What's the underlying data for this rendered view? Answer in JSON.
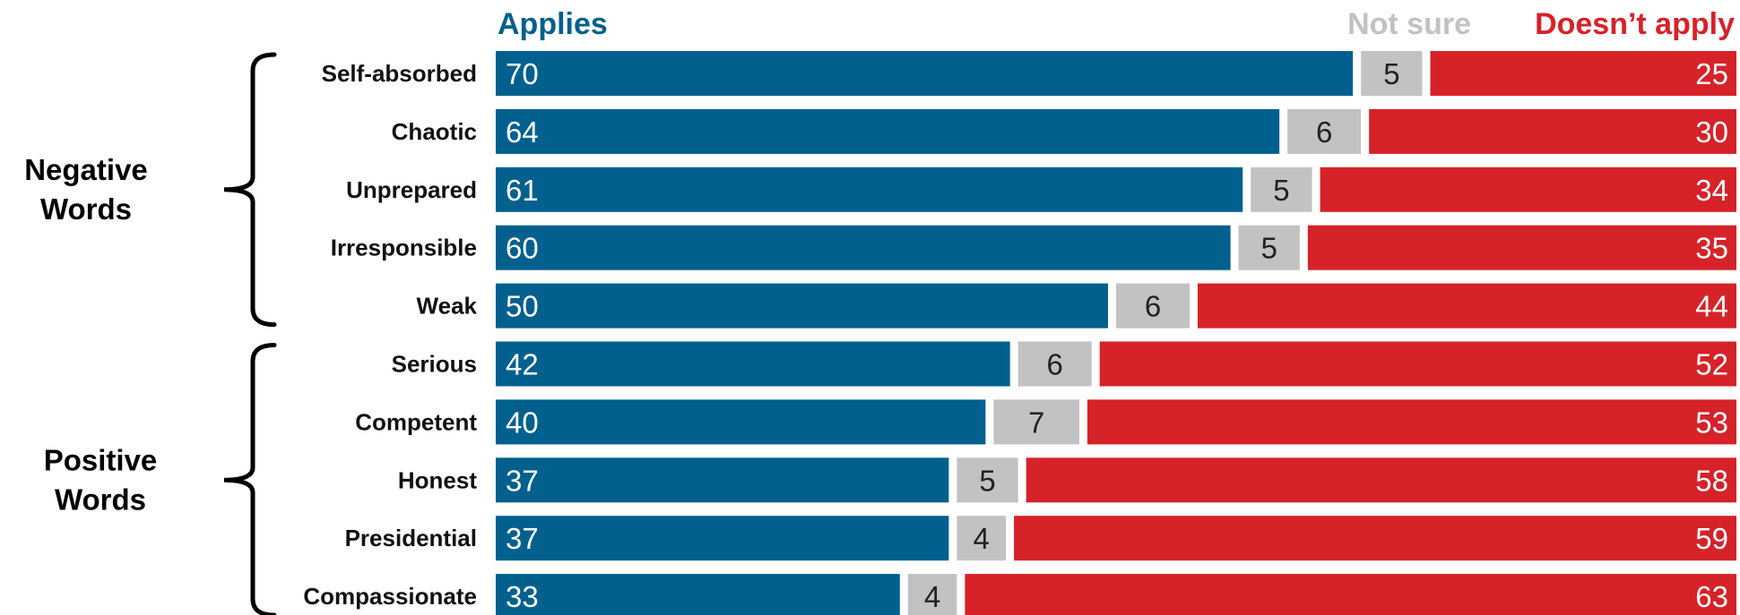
{
  "colors": {
    "applies": "#01608d",
    "not_sure": "#c2c2c2",
    "doesnt_apply": "#d62229"
  },
  "chart_data": {
    "type": "bar",
    "orientation": "horizontal",
    "stacked": true,
    "xlim": [
      0,
      100
    ],
    "legend": {
      "placement": "top",
      "items": [
        "Applies",
        "Not sure",
        "Doesn’t apply"
      ]
    },
    "groups": [
      {
        "label": [
          "Negative",
          "Words"
        ],
        "categories": [
          "Self-absorbed",
          "Chaotic",
          "Unprepared",
          "Irresponsible",
          "Weak"
        ]
      },
      {
        "label": [
          "Positive",
          "Words"
        ],
        "categories": [
          "Serious",
          "Competent",
          "Honest",
          "Presidential",
          "Compassionate"
        ]
      }
    ],
    "categories": [
      "Self-absorbed",
      "Chaotic",
      "Unprepared",
      "Irresponsible",
      "Weak",
      "Serious",
      "Competent",
      "Honest",
      "Presidential",
      "Compassionate"
    ],
    "series": [
      {
        "name": "Applies",
        "values": [
          70,
          64,
          61,
          60,
          50,
          42,
          40,
          37,
          37,
          33
        ]
      },
      {
        "name": "Not sure",
        "values": [
          5,
          6,
          5,
          5,
          6,
          6,
          7,
          5,
          4,
          4
        ]
      },
      {
        "name": "Doesn’t apply",
        "values": [
          25,
          30,
          34,
          35,
          44,
          52,
          53,
          58,
          59,
          63
        ]
      }
    ]
  }
}
